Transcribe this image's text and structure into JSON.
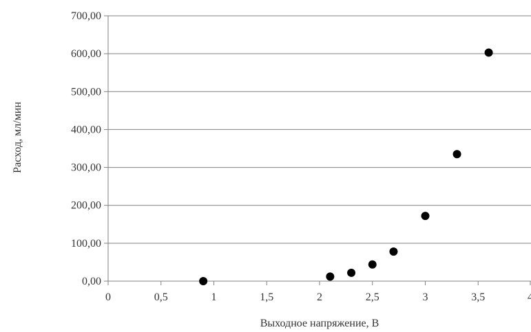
{
  "chart_data": {
    "type": "scatter",
    "title": "",
    "xlabel": "Выходное  напряжение, В",
    "ylabel": "Расход,  мл/мин",
    "xlim": [
      0,
      4
    ],
    "ylim": [
      0,
      700
    ],
    "x_ticks": [
      "0",
      "0,5",
      "1",
      "1,5",
      "2",
      "2,5",
      "3",
      "3,5",
      "4"
    ],
    "y_ticks": [
      "0,00",
      "100,00",
      "200,00",
      "300,00",
      "400,00",
      "500,00",
      "600,00",
      "700,00"
    ],
    "grid": "horizontal",
    "series": [
      {
        "x": [
          0.9,
          2.1,
          2.3,
          2.5,
          2.7,
          3.0,
          3.3,
          3.6
        ],
        "y": [
          0,
          12,
          22,
          44,
          78,
          172,
          335,
          603
        ]
      }
    ],
    "colors": {
      "marker": "#000000",
      "grid": "#808080",
      "axis": "#808080",
      "text": "#333333"
    }
  }
}
